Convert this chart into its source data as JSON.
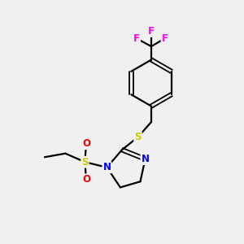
{
  "background_color": "#f0f0f0",
  "bond_color": "#000000",
  "nitrogen_color": "#0000ff",
  "oxygen_color": "#ff0000",
  "sulfur_color": "#cccc00",
  "fluorine_color": "#ff00ff",
  "font_size_atom": 8.5,
  "fig_width": 3.0,
  "fig_height": 3.0,
  "dpi": 100,
  "xlim": [
    0,
    10
  ],
  "ylim": [
    0,
    10
  ]
}
